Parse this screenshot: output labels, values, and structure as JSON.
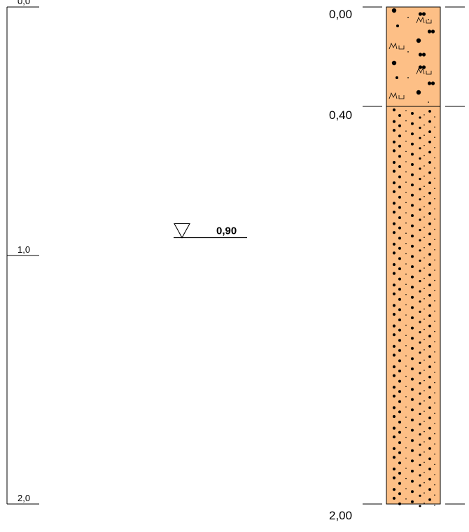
{
  "depth_scale": {
    "ticks": [
      {
        "depth": 0.0,
        "label": "0,0"
      },
      {
        "depth": 1.0,
        "label": "1,0"
      },
      {
        "depth": 2.0,
        "label": "2,0"
      }
    ]
  },
  "groundwater": {
    "depth": 0.9,
    "label": "0,90"
  },
  "boring_column": {
    "layers": [
      {
        "top": 0.0,
        "bottom": 0.4,
        "top_label": "0,00",
        "bottom_label": "0,40",
        "pattern": "gravel-sand-humus",
        "fill_color": "#FDBF86"
      },
      {
        "top": 0.4,
        "bottom": 2.0,
        "top_label": "0,40",
        "bottom_label": "2,00",
        "pattern": "gravel-sand",
        "fill_color": "#FDBF86"
      }
    ]
  },
  "colors": {
    "line": "#000000",
    "layer_fill": "#FDBF86"
  },
  "icons": {
    "water_level": "inverted-triangle-icon"
  }
}
